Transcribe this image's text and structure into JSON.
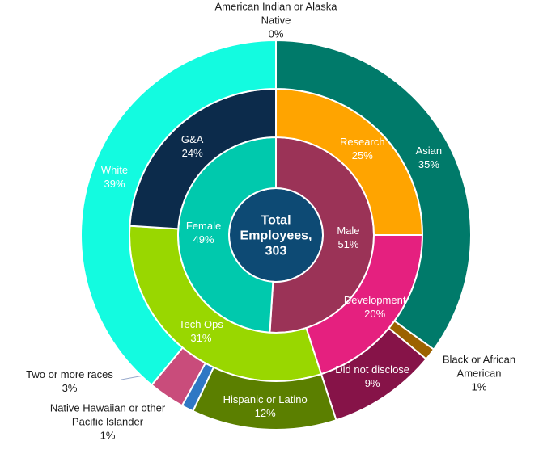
{
  "chart_data": {
    "type": "sunburst",
    "center_label": "Total Employees, 303",
    "series": [
      {
        "categories": [
          "Male",
          "Female"
        ],
        "values": [
          51,
          49
        ],
        "value_labels": [
          "51%",
          "49%"
        ],
        "colors": [
          "#9b3357",
          "#00c9ad"
        ]
      },
      {
        "categories": [
          "Research",
          "Development",
          "Tech Ops",
          "G&A"
        ],
        "values": [
          25,
          20,
          31,
          24
        ],
        "value_labels": [
          "25%",
          "20%",
          "31%",
          "24%"
        ],
        "colors": [
          "#ffa400",
          "#e5207f",
          "#99d700",
          "#0c2b4b"
        ]
      },
      {
        "categories": [
          "Asian",
          "Black or African American",
          "Did not disclose",
          "Hispanic or Latino",
          "Native Hawaiian or other Pacific Islander",
          "Two or more races",
          "White",
          "American Indian or Alaska Native"
        ],
        "values": [
          35,
          1,
          9,
          12,
          1,
          3,
          39,
          0
        ],
        "value_labels": [
          "35%",
          "1%",
          "9%",
          "12%",
          "1%",
          "3%",
          "39%",
          "0%"
        ],
        "colors": [
          "#007a6a",
          "#9c6200",
          "#861348",
          "#5b7f00",
          "#2f78c4",
          "#c94c7b",
          "#13fbe0",
          "#00a88f"
        ]
      }
    ]
  }
}
